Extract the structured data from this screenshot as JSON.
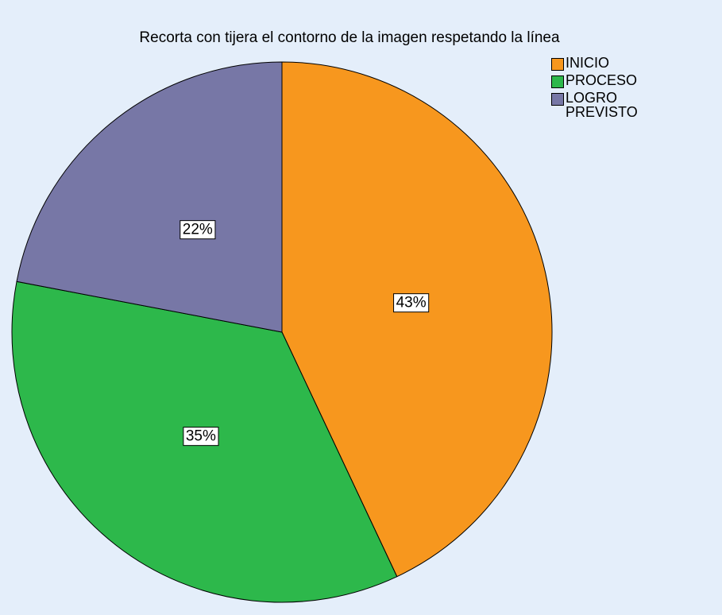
{
  "chart_data": {
    "type": "pie",
    "title": "Recorta con tijera el contorno de la imagen respetando la línea",
    "categories": [
      "INICIO",
      "PROCESO",
      "LOGRO PREVISTO"
    ],
    "values": [
      43,
      35,
      22
    ],
    "value_labels": [
      "43%",
      "35%",
      "22%"
    ],
    "colors": [
      "#f7971e",
      "#2db84b",
      "#7777a6"
    ],
    "legend": "top-right"
  }
}
